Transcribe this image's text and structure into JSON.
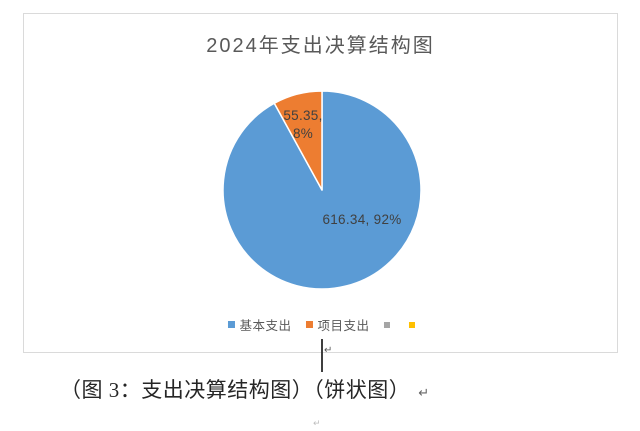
{
  "colors": {
    "series_blue": "#5B9BD5",
    "series_orange": "#ED7D31",
    "series_gray": "#A5A5A5",
    "series_yellow": "#FFC000",
    "chart_border": "#DADADA",
    "title_text": "#595959",
    "data_label_text": "#404040",
    "legend_text": "#595959",
    "caption_text": "#262626"
  },
  "chart_data": {
    "type": "pie",
    "title": "2024年支出决算结构图",
    "slices": [
      {
        "key": "basic",
        "label": "基本支出",
        "value": 616.34,
        "percent": 92,
        "color": "#5B9BD5",
        "data_label": "616.34, 92%"
      },
      {
        "key": "project",
        "label": "项目支出",
        "value": 55.35,
        "percent": 8,
        "color": "#ED7D31",
        "data_label": "55.35, 8%",
        "data_label_lines": [
          "55.35,",
          "8%"
        ]
      }
    ],
    "legend": [
      {
        "label": "基本支出",
        "color": "#5B9BD5"
      },
      {
        "label": "项目支出",
        "color": "#ED7D31"
      },
      {
        "label": "",
        "color": "#A5A5A5"
      },
      {
        "label": "",
        "color": "#FFC000"
      }
    ],
    "legend_position": "bottom",
    "start_angle_deg": 0,
    "direction": "clockwise"
  },
  "caption": {
    "text": "（图 3：支出决算结构图）（饼状图）"
  },
  "marks": {
    "caption_return": "↵",
    "cursor_return": "↵",
    "bottom_artifact": "↵"
  }
}
